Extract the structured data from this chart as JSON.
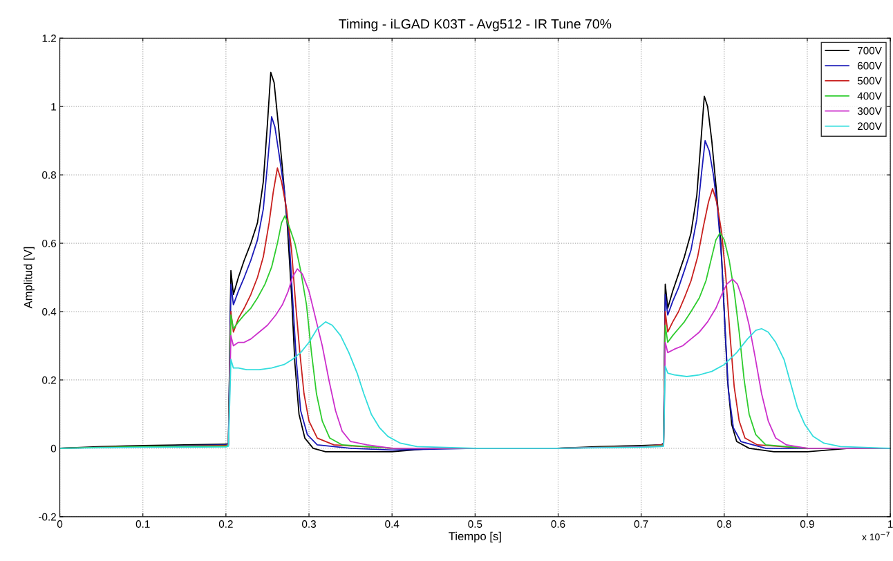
{
  "chart_data": {
    "type": "line",
    "title": "Timing - iLGAD K03T - Avg512 - IR Tune 70%",
    "xlabel": "Tiempo [s]",
    "ylabel": "Amplitud [V]",
    "annotations": [
      "x 10$^{−7}$"
    ],
    "xlim": [
      0,
      1
    ],
    "ylim": [
      -0.2,
      1.2
    ],
    "xticks": [
      0,
      0.1,
      0.2,
      0.3,
      0.4,
      0.5,
      0.6,
      0.7,
      0.8,
      0.9,
      1
    ],
    "yticks": [
      -0.2,
      0,
      0.2,
      0.4,
      0.6,
      0.8,
      1,
      1.2
    ],
    "grid": true,
    "legend": "top right",
    "line_style": "solid",
    "series": [
      {
        "name": "700V",
        "color": "#000000",
        "x": [
          0,
          0.05,
          0.1,
          0.15,
          0.2,
          0.203,
          0.206,
          0.209,
          0.215,
          0.222,
          0.23,
          0.238,
          0.245,
          0.25,
          0.254,
          0.258,
          0.263,
          0.268,
          0.274,
          0.279,
          0.283,
          0.288,
          0.295,
          0.305,
          0.32,
          0.36,
          0.4,
          0.45,
          0.5,
          0.55,
          0.6,
          0.65,
          0.7,
          0.724,
          0.727,
          0.729,
          0.732,
          0.738,
          0.745,
          0.752,
          0.76,
          0.767,
          0.772,
          0.776,
          0.78,
          0.785,
          0.79,
          0.796,
          0.8,
          0.804,
          0.809,
          0.815,
          0.83,
          0.86,
          0.9,
          0.95,
          1.0
        ],
        "values": [
          0.0,
          0.005,
          0.008,
          0.01,
          0.012,
          0.015,
          0.52,
          0.45,
          0.5,
          0.55,
          0.6,
          0.66,
          0.78,
          0.95,
          1.1,
          1.07,
          0.95,
          0.82,
          0.65,
          0.45,
          0.25,
          0.1,
          0.03,
          0.0,
          -0.01,
          -0.01,
          -0.01,
          0.0,
          0.0,
          0.0,
          0.0,
          0.005,
          0.008,
          0.01,
          0.015,
          0.48,
          0.41,
          0.46,
          0.51,
          0.56,
          0.63,
          0.74,
          0.9,
          1.03,
          1.0,
          0.9,
          0.77,
          0.6,
          0.4,
          0.2,
          0.07,
          0.02,
          0.0,
          -0.01,
          -0.01,
          0.0,
          0.0
        ]
      },
      {
        "name": "600V",
        "color": "#1a1ab8",
        "x": [
          0,
          0.1,
          0.2,
          0.203,
          0.206,
          0.209,
          0.215,
          0.222,
          0.23,
          0.238,
          0.245,
          0.25,
          0.255,
          0.259,
          0.264,
          0.27,
          0.276,
          0.28,
          0.285,
          0.29,
          0.298,
          0.31,
          0.35,
          0.4,
          0.5,
          0.6,
          0.7,
          0.724,
          0.727,
          0.729,
          0.732,
          0.738,
          0.745,
          0.752,
          0.76,
          0.767,
          0.772,
          0.777,
          0.782,
          0.787,
          0.792,
          0.797,
          0.801,
          0.805,
          0.811,
          0.82,
          0.85,
          0.9,
          1.0
        ],
        "values": [
          0,
          0.005,
          0.01,
          0.015,
          0.48,
          0.42,
          0.46,
          0.5,
          0.55,
          0.61,
          0.7,
          0.83,
          0.97,
          0.94,
          0.86,
          0.76,
          0.62,
          0.45,
          0.25,
          0.11,
          0.04,
          0.01,
          0.0,
          -0.005,
          0.0,
          0.0,
          0.005,
          0.01,
          0.015,
          0.45,
          0.39,
          0.43,
          0.47,
          0.52,
          0.58,
          0.67,
          0.79,
          0.9,
          0.87,
          0.8,
          0.7,
          0.55,
          0.35,
          0.17,
          0.06,
          0.02,
          0.0,
          0.0,
          0.0
        ]
      },
      {
        "name": "500V",
        "color": "#c8201e",
        "x": [
          0,
          0.1,
          0.2,
          0.203,
          0.206,
          0.209,
          0.215,
          0.222,
          0.23,
          0.238,
          0.245,
          0.252,
          0.257,
          0.262,
          0.267,
          0.273,
          0.279,
          0.284,
          0.289,
          0.294,
          0.3,
          0.31,
          0.33,
          0.4,
          0.5,
          0.6,
          0.7,
          0.724,
          0.727,
          0.729,
          0.732,
          0.738,
          0.745,
          0.752,
          0.76,
          0.768,
          0.775,
          0.781,
          0.786,
          0.791,
          0.797,
          0.802,
          0.807,
          0.812,
          0.818,
          0.825,
          0.84,
          0.9,
          1.0
        ],
        "values": [
          0,
          0.005,
          0.008,
          0.012,
          0.4,
          0.34,
          0.38,
          0.41,
          0.45,
          0.5,
          0.56,
          0.66,
          0.75,
          0.82,
          0.78,
          0.7,
          0.58,
          0.42,
          0.28,
          0.16,
          0.08,
          0.03,
          0.01,
          0.0,
          0.0,
          0.0,
          0.005,
          0.01,
          0.012,
          0.4,
          0.34,
          0.37,
          0.4,
          0.44,
          0.49,
          0.56,
          0.65,
          0.72,
          0.76,
          0.72,
          0.63,
          0.5,
          0.33,
          0.18,
          0.08,
          0.03,
          0.01,
          0.0,
          0.0
        ]
      },
      {
        "name": "400V",
        "color": "#2ecc2e",
        "x": [
          0,
          0.1,
          0.2,
          0.203,
          0.206,
          0.209,
          0.215,
          0.222,
          0.23,
          0.238,
          0.247,
          0.255,
          0.262,
          0.267,
          0.271,
          0.276,
          0.283,
          0.29,
          0.297,
          0.303,
          0.309,
          0.316,
          0.325,
          0.34,
          0.4,
          0.5,
          0.6,
          0.7,
          0.724,
          0.727,
          0.729,
          0.732,
          0.738,
          0.745,
          0.752,
          0.76,
          0.77,
          0.778,
          0.785,
          0.79,
          0.795,
          0.8,
          0.806,
          0.812,
          0.818,
          0.824,
          0.83,
          0.838,
          0.85,
          0.9,
          1.0
        ],
        "values": [
          0,
          0.005,
          0.006,
          0.01,
          0.39,
          0.35,
          0.37,
          0.39,
          0.41,
          0.44,
          0.48,
          0.53,
          0.6,
          0.66,
          0.68,
          0.65,
          0.6,
          0.52,
          0.42,
          0.28,
          0.16,
          0.08,
          0.03,
          0.01,
          0.0,
          0.0,
          0.0,
          0.005,
          0.008,
          0.01,
          0.36,
          0.31,
          0.33,
          0.35,
          0.37,
          0.4,
          0.44,
          0.49,
          0.56,
          0.61,
          0.63,
          0.61,
          0.55,
          0.46,
          0.34,
          0.2,
          0.1,
          0.04,
          0.01,
          0.0,
          0.0
        ]
      },
      {
        "name": "300V",
        "color": "#cc30cc",
        "x": [
          0.203,
          0.206,
          0.209,
          0.215,
          0.222,
          0.23,
          0.24,
          0.25,
          0.26,
          0.268,
          0.275,
          0.28,
          0.286,
          0.292,
          0.3,
          0.308,
          0.316,
          0.324,
          0.332,
          0.34,
          0.35,
          0.37,
          0.4,
          0.5,
          0.6,
          0.7,
          0.724,
          0.727,
          0.729,
          0.732,
          0.74,
          0.75,
          0.76,
          0.77,
          0.78,
          0.79,
          0.797,
          0.803,
          0.81,
          0.816,
          0.823,
          0.83,
          0.837,
          0.845,
          0.853,
          0.862,
          0.875,
          0.9,
          1.0
        ],
        "values": [
          0.008,
          0.33,
          0.3,
          0.31,
          0.31,
          0.32,
          0.34,
          0.36,
          0.39,
          0.42,
          0.46,
          0.5,
          0.525,
          0.51,
          0.46,
          0.38,
          0.3,
          0.2,
          0.11,
          0.05,
          0.02,
          0.01,
          0.0,
          0.0,
          0.0,
          0.004,
          0.006,
          0.008,
          0.31,
          0.28,
          0.29,
          0.3,
          0.32,
          0.34,
          0.37,
          0.41,
          0.45,
          0.48,
          0.495,
          0.48,
          0.43,
          0.36,
          0.27,
          0.16,
          0.08,
          0.03,
          0.01,
          0.0,
          0.0
        ]
      },
      {
        "name": "200V",
        "color": "#33dddd",
        "x": [
          0,
          0.1,
          0.2,
          0.203,
          0.206,
          0.209,
          0.215,
          0.225,
          0.24,
          0.255,
          0.27,
          0.28,
          0.29,
          0.3,
          0.31,
          0.32,
          0.328,
          0.338,
          0.348,
          0.358,
          0.366,
          0.375,
          0.385,
          0.395,
          0.41,
          0.43,
          0.5,
          0.6,
          0.7,
          0.724,
          0.727,
          0.729,
          0.732,
          0.74,
          0.755,
          0.77,
          0.785,
          0.8,
          0.815,
          0.828,
          0.838,
          0.845,
          0.853,
          0.862,
          0.872,
          0.88,
          0.888,
          0.897,
          0.907,
          0.92,
          0.94,
          1.0
        ],
        "values": [
          0,
          0.003,
          0.004,
          0.006,
          0.26,
          0.235,
          0.235,
          0.23,
          0.23,
          0.235,
          0.245,
          0.26,
          0.28,
          0.31,
          0.35,
          0.37,
          0.36,
          0.33,
          0.28,
          0.22,
          0.16,
          0.1,
          0.06,
          0.035,
          0.015,
          0.005,
          0.0,
          0.0,
          0.003,
          0.005,
          0.006,
          0.24,
          0.22,
          0.215,
          0.21,
          0.215,
          0.225,
          0.245,
          0.28,
          0.32,
          0.345,
          0.35,
          0.34,
          0.31,
          0.26,
          0.19,
          0.12,
          0.07,
          0.035,
          0.015,
          0.005,
          0.0
        ]
      }
    ]
  }
}
